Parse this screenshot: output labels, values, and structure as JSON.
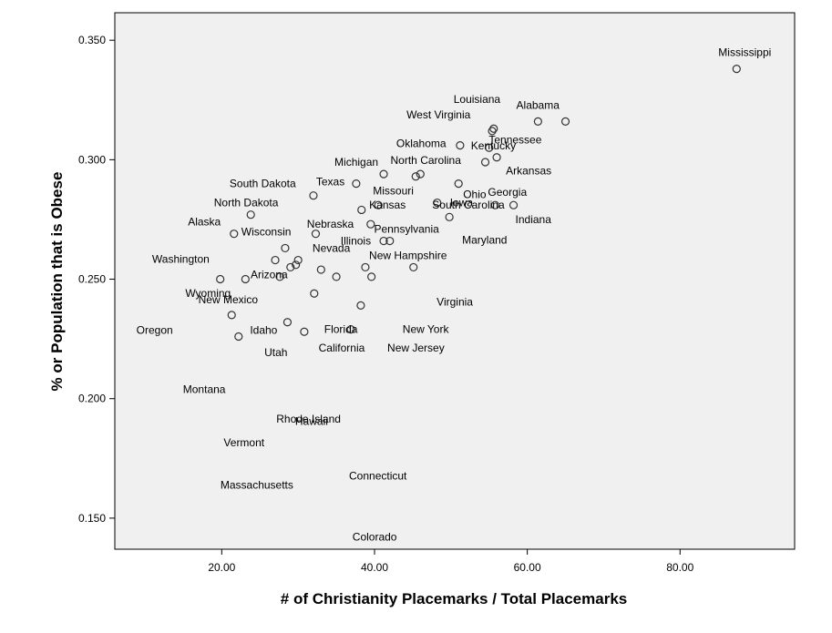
{
  "chart_data": {
    "type": "scatter",
    "xlabel": "# of Christianity Placemarks / Total Placemarks",
    "ylabel": "% or Population that is Obese",
    "xlim": [
      6,
      95
    ],
    "ylim": [
      0.137,
      0.3615
    ],
    "x_ticks": [
      20,
      40,
      60,
      80
    ],
    "x_tick_labels": [
      "20.00",
      "40.00",
      "60.00",
      "80.00"
    ],
    "y_ticks": [
      0.15,
      0.2,
      0.25,
      0.3,
      0.35
    ],
    "y_tick_labels": [
      "0.150",
      "0.200",
      "0.250",
      "0.300",
      "0.350"
    ],
    "grid": false,
    "colors": {
      "plot_bg": "#f0f0f0",
      "marker_stroke": "#333333",
      "axis": "#000000"
    },
    "points": [
      {
        "label": "Mississippi",
        "x": 87.4,
        "y": 0.338
      },
      {
        "label": "Alabama",
        "x": 65.0,
        "y": 0.316
      },
      {
        "label": "Tennessee",
        "x": 61.4,
        "y": 0.316
      },
      {
        "label": "Louisiana",
        "x": 55.6,
        "y": 0.313
      },
      {
        "label": "West Virginia",
        "x": 55.4,
        "y": 0.312
      },
      {
        "label": "Kentucky",
        "x": 55.0,
        "y": 0.305
      },
      {
        "label": "Oklahoma",
        "x": 51.2,
        "y": 0.306
      },
      {
        "label": "Arkansas",
        "x": 56.0,
        "y": 0.301
      },
      {
        "label": "North Carolina",
        "x": 54.5,
        "y": 0.299
      },
      {
        "label": "South Carolina",
        "x": 46.0,
        "y": 0.294
      },
      {
        "label": "Michigan",
        "x": 41.2,
        "y": 0.294
      },
      {
        "label": "Missouri",
        "x": 45.4,
        "y": 0.293
      },
      {
        "label": "Ohio",
        "x": 51.0,
        "y": 0.29
      },
      {
        "label": "Texas",
        "x": 37.6,
        "y": 0.29
      },
      {
        "label": "South Dakota",
        "x": 32.0,
        "y": 0.285
      },
      {
        "label": "Georgia",
        "x": 55.8,
        "y": 0.281
      },
      {
        "label": "Indiana",
        "x": 58.2,
        "y": 0.281
      },
      {
        "label": "Iowa",
        "x": 48.2,
        "y": 0.282
      },
      {
        "label": "Kansas",
        "x": 40.5,
        "y": 0.281
      },
      {
        "label": "North Dakota",
        "x": 38.3,
        "y": 0.279
      },
      {
        "label": "Alaska",
        "x": 23.8,
        "y": 0.277
      },
      {
        "label": "Maryland",
        "x": 49.8,
        "y": 0.276
      },
      {
        "label": "Nebraska",
        "x": 39.5,
        "y": 0.273
      },
      {
        "label": "Wisconsin",
        "x": 21.6,
        "y": 0.269
      },
      {
        "label": "Pennsylvania",
        "x": 32.3,
        "y": 0.269
      },
      {
        "label": "Illinois",
        "x": 42.0,
        "y": 0.266
      },
      {
        "label": "New Hampshire",
        "x": 41.2,
        "y": 0.266
      },
      {
        "label": "Washington",
        "x": 28.3,
        "y": 0.263
      },
      {
        "label": "Arizona",
        "x": 27.0,
        "y": 0.258
      },
      {
        "label": "Virginia",
        "x": 30.0,
        "y": 0.258
      },
      {
        "label": "New Mexico",
        "x": 29.7,
        "y": 0.256
      },
      {
        "label": "Nevada",
        "x": 38.8,
        "y": 0.255
      },
      {
        "label": "Florida",
        "x": 45.1,
        "y": 0.255
      },
      {
        "label": "New York",
        "x": 29.0,
        "y": 0.255
      },
      {
        "label": "Wyoming",
        "x": 33.0,
        "y": 0.254
      },
      {
        "label": "Oregon",
        "x": 19.8,
        "y": 0.25
      },
      {
        "label": "Idaho",
        "x": 23.1,
        "y": 0.25
      },
      {
        "label": "New Jersey",
        "x": 27.6,
        "y": 0.251
      },
      {
        "label": "Utah",
        "x": 35.0,
        "y": 0.251
      },
      {
        "label": "California",
        "x": 39.6,
        "y": 0.251
      },
      {
        "label": "Montana",
        "x": 32.1,
        "y": 0.244
      },
      {
        "label": "Hawaii",
        "x": 38.2,
        "y": 0.239
      },
      {
        "label": "Rhode Island",
        "x": 21.3,
        "y": 0.235
      },
      {
        "label": "Vermont",
        "x": 28.6,
        "y": 0.232
      },
      {
        "label": "Massachusetts",
        "x": 30.8,
        "y": 0.228
      },
      {
        "label": "Connecticut",
        "x": 36.9,
        "y": 0.229
      },
      {
        "label": "Colorado",
        "x": 22.2,
        "y": 0.226
      }
    ]
  }
}
